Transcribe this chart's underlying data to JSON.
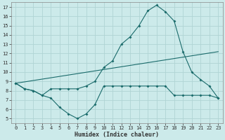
{
  "xlabel": "Humidex (Indice chaleur)",
  "background_color": "#cceaea",
  "grid_color": "#b0d4d4",
  "line_color": "#1a6b6b",
  "xlim": [
    -0.5,
    23.5
  ],
  "ylim": [
    4.5,
    17.5
  ],
  "xticks": [
    0,
    1,
    2,
    3,
    4,
    5,
    6,
    7,
    8,
    9,
    10,
    11,
    12,
    13,
    14,
    15,
    16,
    17,
    18,
    19,
    20,
    21,
    22,
    23
  ],
  "yticks": [
    5,
    6,
    7,
    8,
    9,
    10,
    11,
    12,
    13,
    14,
    15,
    16,
    17
  ],
  "series1_x": [
    0,
    1,
    2,
    3,
    4,
    5,
    6,
    7,
    8,
    9,
    10,
    11,
    12,
    13,
    14,
    15,
    16,
    17,
    18,
    19,
    20,
    21,
    22,
    23
  ],
  "series1_y": [
    8.8,
    8.2,
    8.0,
    7.5,
    7.2,
    6.2,
    5.5,
    5.0,
    5.5,
    6.5,
    8.5,
    8.5,
    8.5,
    8.5,
    8.5,
    8.5,
    8.5,
    8.5,
    7.5,
    7.5,
    7.5,
    7.5,
    7.5,
    7.2
  ],
  "series2_x": [
    0,
    1,
    2,
    3,
    4,
    5,
    6,
    7,
    8,
    9,
    10,
    11,
    12,
    13,
    14,
    15,
    16,
    17,
    18,
    19,
    20,
    21,
    22,
    23
  ],
  "series2_y": [
    8.8,
    8.2,
    8.0,
    7.5,
    8.2,
    8.2,
    8.2,
    8.2,
    8.5,
    9.0,
    10.5,
    11.2,
    13.0,
    13.8,
    15.0,
    16.6,
    17.2,
    16.5,
    15.5,
    12.2,
    10.0,
    9.2,
    8.5,
    7.2
  ],
  "series3_x": [
    0,
    23
  ],
  "series3_y": [
    8.8,
    12.2
  ]
}
